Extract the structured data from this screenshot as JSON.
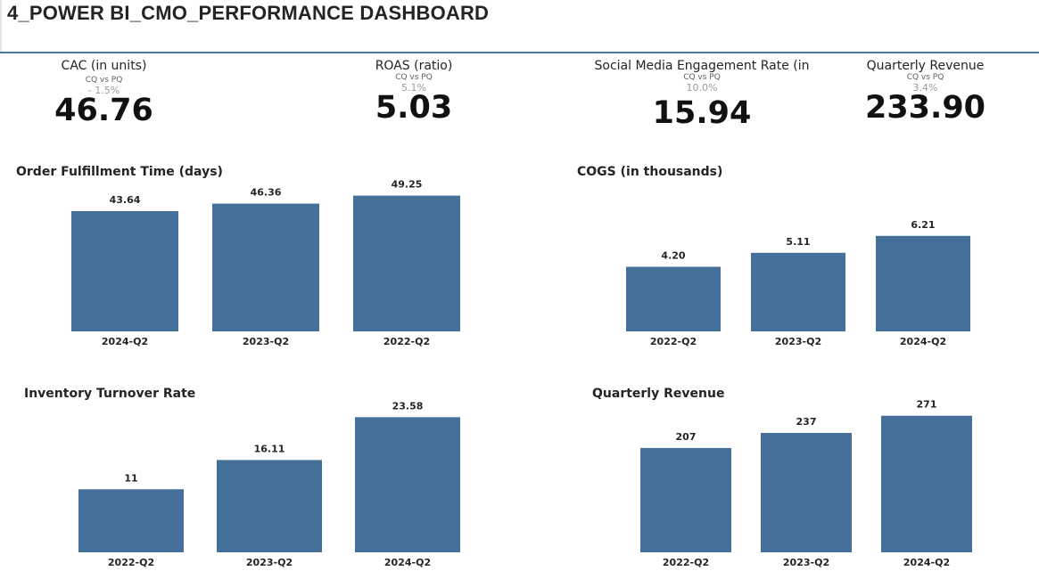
{
  "page": {
    "title": "4_POWER BI_CMO_PERFORMANCE DASHBOARD"
  },
  "colors": {
    "bar": "#44709a",
    "divider": "#4a78a5"
  },
  "kpis": [
    {
      "title": "CAC (in units)",
      "compare_label": "CQ vs PQ",
      "change": "- 1.5%",
      "value": "46.76"
    },
    {
      "title": "ROAS (ratio)",
      "compare_label": "CQ vs PQ",
      "change": "5.1%",
      "value": "5.03"
    },
    {
      "title": "Social Media Engagement Rate (in",
      "compare_label": "CQ vs PQ",
      "change": "10.0%",
      "value": "15.94"
    },
    {
      "title": "Quarterly Revenue",
      "compare_label": "CQ vs PQ",
      "change": "3.4%",
      "value": "233.90"
    }
  ],
  "chart_data": [
    {
      "type": "bar",
      "title": "Order Fulfillment Time (days)",
      "categories": [
        "2024-Q2",
        "2023-Q2",
        "2022-Q2"
      ],
      "values": [
        43.64,
        46.36,
        49.25
      ],
      "labels": [
        "43.64",
        "46.36",
        "49.25"
      ],
      "ylim": [
        0,
        53
      ],
      "grid": false
    },
    {
      "type": "bar",
      "title": "COGS (in thousands)",
      "categories": [
        "2022-Q2",
        "2023-Q2",
        "2024-Q2"
      ],
      "values": [
        4.2,
        5.11,
        6.21
      ],
      "labels": [
        "4.20",
        "5.11",
        "6.21"
      ],
      "ylim": [
        0,
        9.5
      ],
      "grid": false
    },
    {
      "type": "bar",
      "title": "Inventory Turnover Rate",
      "categories": [
        "2022-Q2",
        "2023-Q2",
        "2024-Q2"
      ],
      "values": [
        11,
        16.11,
        23.58
      ],
      "labels": [
        "11",
        "16.11",
        "23.58"
      ],
      "ylim": [
        0,
        25.5
      ],
      "grid": false
    },
    {
      "type": "bar",
      "title": "Quarterly Revenue",
      "categories": [
        "2022-Q2",
        "2023-Q2",
        "2024-Q2"
      ],
      "values": [
        207,
        237,
        271
      ],
      "labels": [
        "207",
        "237",
        "271"
      ],
      "ylim": [
        0,
        290
      ],
      "grid": false
    }
  ]
}
